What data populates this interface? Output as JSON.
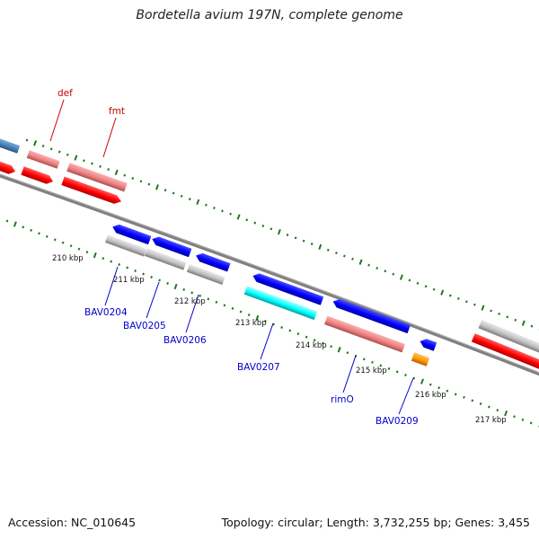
{
  "title": "Bordetella avium 197N, complete genome",
  "footer": {
    "accession": "Accession: NC_010645",
    "topology": "Topology: circular; Length: 3,732,255 bp; Genes: 3,455"
  },
  "scale_labels": [
    "210 kbp",
    "211 kbp",
    "212 kbp",
    "213 kbp",
    "214 kbp",
    "215 kbp",
    "216 kbp",
    "217 kbp"
  ],
  "forward_gene_labels": [
    "def",
    "fmt"
  ],
  "reverse_gene_labels": [
    "BAV0204",
    "BAV0205",
    "BAV0206",
    "BAV0207",
    "rimO",
    "BAV0209"
  ],
  "colors": {
    "forward_label": "#cc0000",
    "reverse_label": "#0000cc",
    "tick": "#1a7a1a",
    "backbone": "#808080",
    "cds_red": "#ff0000",
    "cds_blue": "#0000ff",
    "rna_pink": "#f08080",
    "rna_gray": "#c0c0c0",
    "rna_cyan": "#00ffff",
    "orange": "#ff9900",
    "steelblue": "#4682b4"
  }
}
